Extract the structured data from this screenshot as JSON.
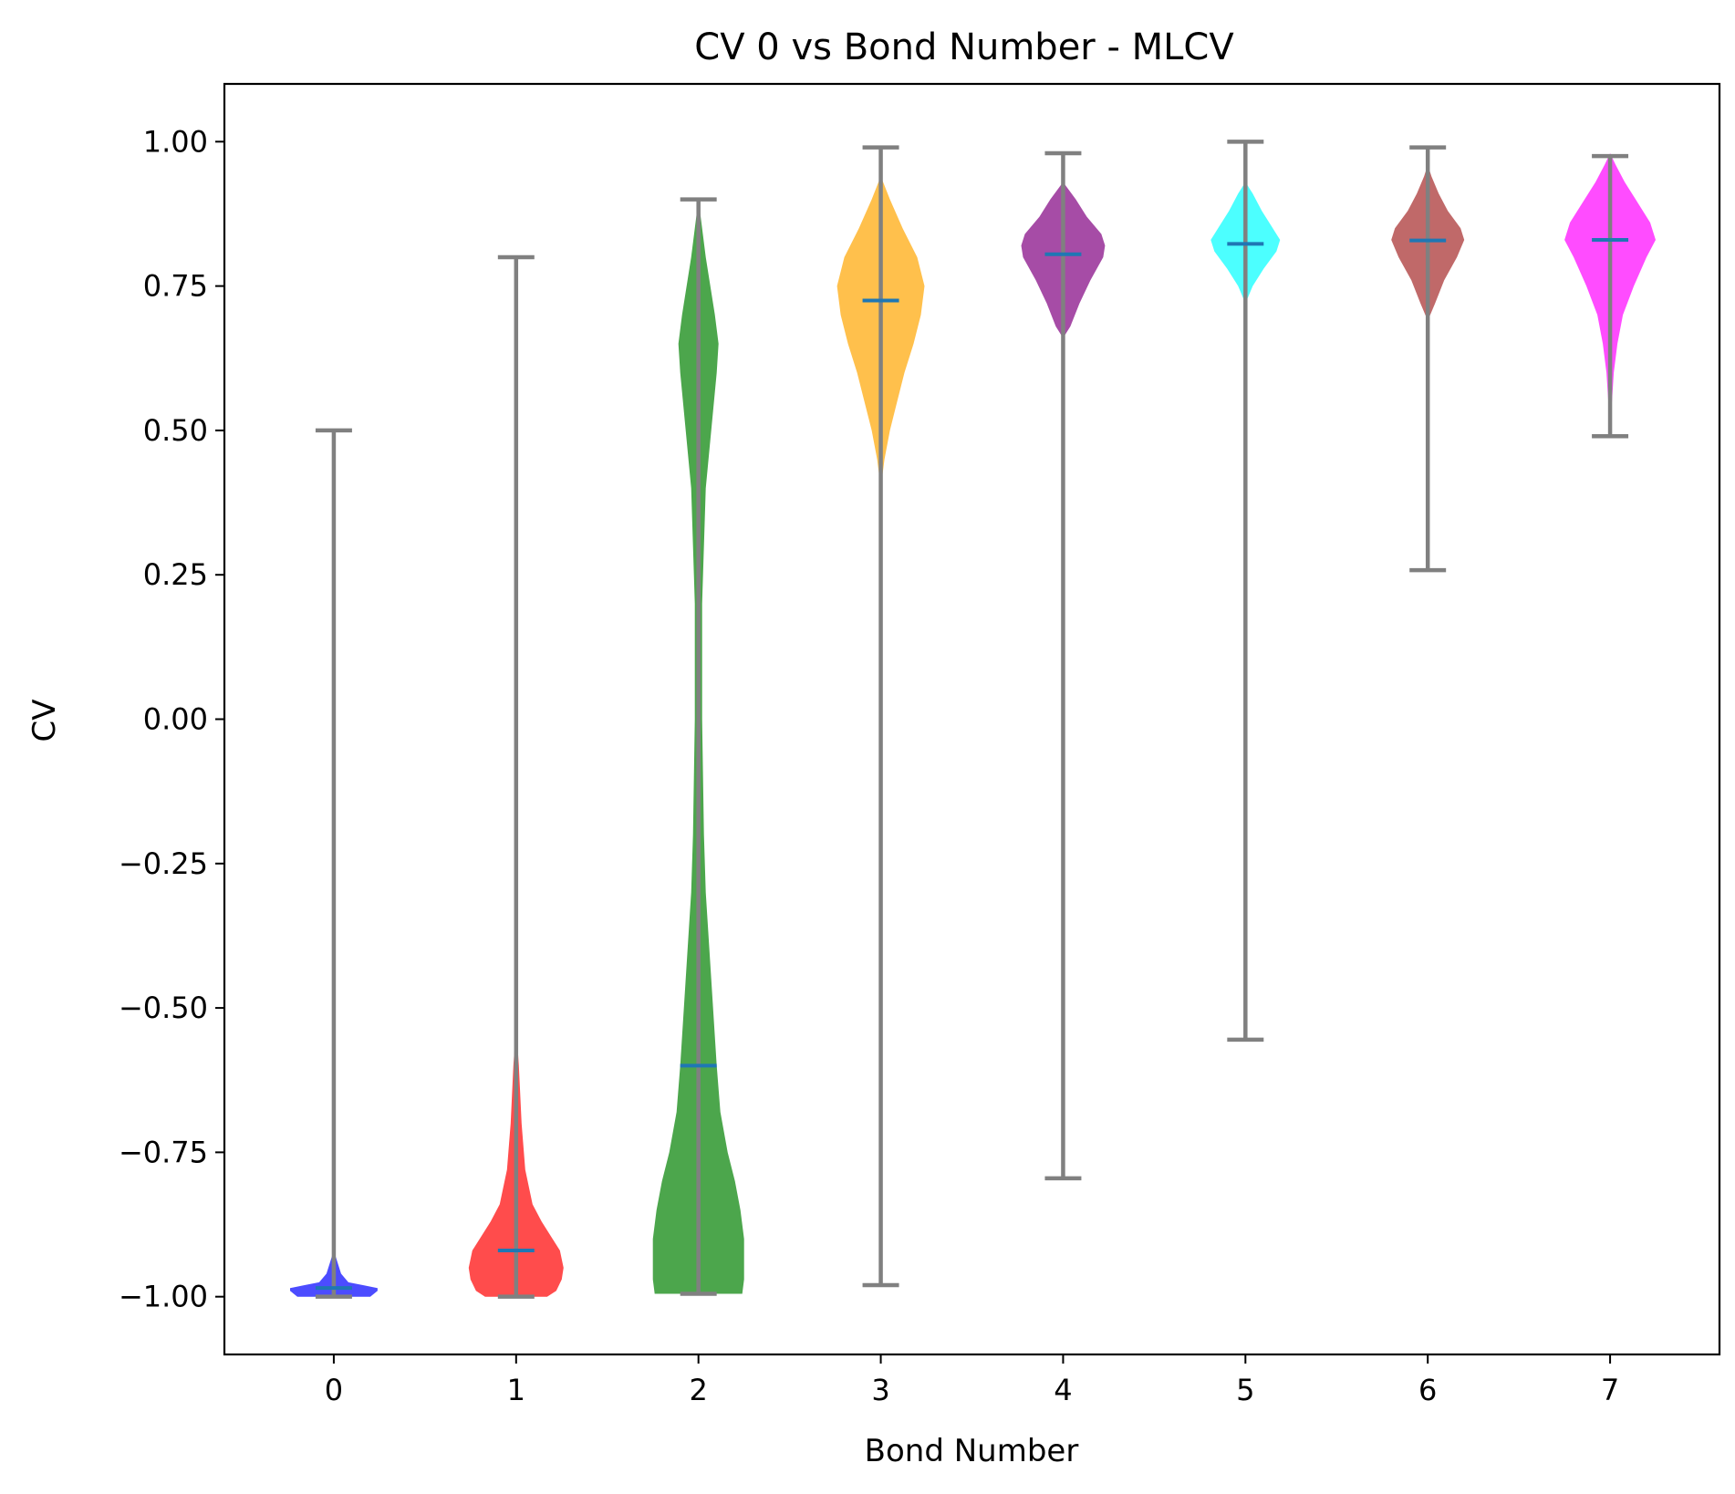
{
  "chart_data": {
    "type": "violin",
    "title": "CV 0 vs Bond Number - MLCV",
    "xlabel": "Bond Number",
    "ylabel": "CV",
    "categories": [
      "0",
      "1",
      "2",
      "3",
      "4",
      "5",
      "6",
      "7"
    ],
    "xlim": [
      -0.6,
      7.6
    ],
    "ylim": [
      -1.1,
      1.1
    ],
    "yticks": [
      1.0,
      0.75,
      0.5,
      0.25,
      0.0,
      -0.25,
      -0.5,
      -0.75,
      -1.0
    ],
    "ytick_labels": [
      "1.00",
      "0.75",
      "0.50",
      "0.25",
      "0.00",
      "−0.25",
      "−0.50",
      "−0.75",
      "−1.00"
    ],
    "grid": false,
    "colors": {
      "whisker": "#808080",
      "median": "#1f77b4",
      "axes": "#000000"
    },
    "violins": [
      {
        "position": 0,
        "color": "#0000ff",
        "min": -1.0,
        "max": 0.5,
        "median": -0.985,
        "profile": [
          [
            -1.0,
            0.2
          ],
          [
            -0.99,
            0.24
          ],
          [
            -0.985,
            0.24
          ],
          [
            -0.98,
            0.16
          ],
          [
            -0.975,
            0.08
          ],
          [
            -0.96,
            0.04
          ],
          [
            -0.94,
            0.02
          ],
          [
            -0.92,
            0.0
          ]
        ]
      },
      {
        "position": 1,
        "color": "#ff0000",
        "min": -1.0,
        "max": 0.8,
        "median": -0.92,
        "profile": [
          [
            -1.0,
            0.17
          ],
          [
            -0.99,
            0.22
          ],
          [
            -0.97,
            0.25
          ],
          [
            -0.95,
            0.26
          ],
          [
            -0.92,
            0.24
          ],
          [
            -0.9,
            0.2
          ],
          [
            -0.87,
            0.14
          ],
          [
            -0.84,
            0.09
          ],
          [
            -0.78,
            0.05
          ],
          [
            -0.7,
            0.03
          ],
          [
            -0.6,
            0.015
          ],
          [
            -0.53,
            0.0
          ]
        ]
      },
      {
        "position": 2,
        "color": "#008000",
        "min": -0.995,
        "max": 0.9,
        "median": -0.6,
        "profile": [
          [
            -0.995,
            0.24
          ],
          [
            -0.97,
            0.25
          ],
          [
            -0.93,
            0.25
          ],
          [
            -0.9,
            0.25
          ],
          [
            -0.85,
            0.23
          ],
          [
            -0.8,
            0.2
          ],
          [
            -0.75,
            0.16
          ],
          [
            -0.68,
            0.12
          ],
          [
            -0.6,
            0.1
          ],
          [
            -0.5,
            0.08
          ],
          [
            -0.4,
            0.06
          ],
          [
            -0.3,
            0.04
          ],
          [
            -0.2,
            0.03
          ],
          [
            0.0,
            0.02
          ],
          [
            0.2,
            0.02
          ],
          [
            0.4,
            0.04
          ],
          [
            0.5,
            0.07
          ],
          [
            0.6,
            0.1
          ],
          [
            0.65,
            0.11
          ],
          [
            0.7,
            0.09
          ],
          [
            0.8,
            0.04
          ],
          [
            0.85,
            0.02
          ],
          [
            0.9,
            0.0
          ]
        ]
      },
      {
        "position": 3,
        "color": "#ffa500",
        "min": -0.98,
        "max": 0.99,
        "median": 0.725,
        "profile": [
          [
            0.4,
            0.0
          ],
          [
            0.45,
            0.02
          ],
          [
            0.5,
            0.05
          ],
          [
            0.55,
            0.09
          ],
          [
            0.6,
            0.13
          ],
          [
            0.65,
            0.18
          ],
          [
            0.7,
            0.22
          ],
          [
            0.75,
            0.24
          ],
          [
            0.8,
            0.2
          ],
          [
            0.85,
            0.12
          ],
          [
            0.9,
            0.05
          ],
          [
            0.94,
            0.0
          ]
        ]
      },
      {
        "position": 4,
        "color": "#800080",
        "min": -0.795,
        "max": 0.98,
        "median": 0.805,
        "profile": [
          [
            0.66,
            0.0
          ],
          [
            0.68,
            0.04
          ],
          [
            0.72,
            0.09
          ],
          [
            0.76,
            0.15
          ],
          [
            0.8,
            0.22
          ],
          [
            0.82,
            0.23
          ],
          [
            0.84,
            0.21
          ],
          [
            0.87,
            0.13
          ],
          [
            0.9,
            0.07
          ],
          [
            0.93,
            0.0
          ]
        ]
      },
      {
        "position": 5,
        "color": "#00ffff",
        "min": -0.555,
        "max": 1.0,
        "median": 0.823,
        "profile": [
          [
            0.72,
            0.0
          ],
          [
            0.75,
            0.04
          ],
          [
            0.78,
            0.1
          ],
          [
            0.81,
            0.17
          ],
          [
            0.83,
            0.19
          ],
          [
            0.85,
            0.15
          ],
          [
            0.88,
            0.09
          ],
          [
            0.91,
            0.04
          ],
          [
            0.93,
            0.0
          ]
        ]
      },
      {
        "position": 6,
        "color": "#a52a2a",
        "min": 0.258,
        "max": 0.99,
        "median": 0.829,
        "profile": [
          [
            0.69,
            0.0
          ],
          [
            0.72,
            0.04
          ],
          [
            0.76,
            0.09
          ],
          [
            0.8,
            0.16
          ],
          [
            0.83,
            0.2
          ],
          [
            0.85,
            0.18
          ],
          [
            0.88,
            0.11
          ],
          [
            0.91,
            0.06
          ],
          [
            0.94,
            0.02
          ],
          [
            0.96,
            0.0
          ]
        ]
      },
      {
        "position": 7,
        "color": "#ff00ff",
        "min": 0.49,
        "max": 0.975,
        "median": 0.83,
        "profile": [
          [
            0.5,
            0.0
          ],
          [
            0.55,
            0.01
          ],
          [
            0.6,
            0.02
          ],
          [
            0.65,
            0.04
          ],
          [
            0.7,
            0.07
          ],
          [
            0.75,
            0.13
          ],
          [
            0.8,
            0.2
          ],
          [
            0.83,
            0.25
          ],
          [
            0.86,
            0.22
          ],
          [
            0.9,
            0.14
          ],
          [
            0.93,
            0.08
          ],
          [
            0.96,
            0.03
          ],
          [
            0.98,
            0.0
          ]
        ]
      }
    ]
  }
}
